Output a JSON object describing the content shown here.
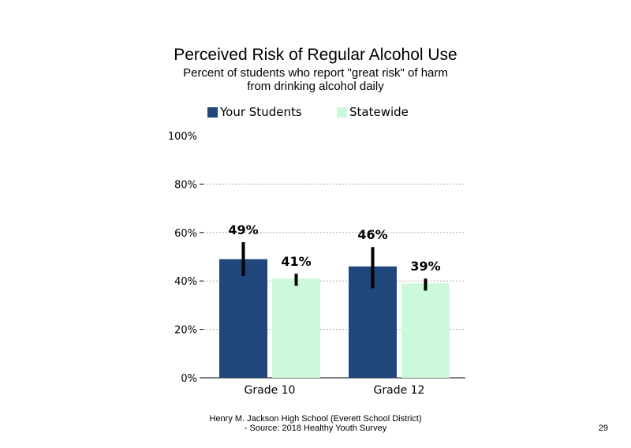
{
  "title": "Perceived Risk of Regular Alcohol Use",
  "subtitle_line1": "Percent of students who report \"great risk\" of harm",
  "subtitle_line2": "from drinking alcohol daily",
  "footer_line1": "Henry M. Jackson High School (Everett School District)",
  "footer_line2": "- Source: 2018 Healthy Youth Survey",
  "page_number": "29",
  "colors": {
    "your_students": "#1f477c",
    "statewide": "#ccf9da",
    "error_bar": "#000000",
    "grid": "#b0b0b0"
  },
  "chart_data": {
    "type": "bar",
    "title": "Perceived Risk of Regular Alcohol Use",
    "categories": [
      "Grade 10",
      "Grade 12"
    ],
    "series": [
      {
        "name": "Your Students",
        "values": [
          49,
          46
        ],
        "labels": [
          "49%",
          "46%"
        ],
        "error_low": [
          42,
          37
        ],
        "error_high": [
          56,
          54
        ]
      },
      {
        "name": "Statewide",
        "values": [
          41,
          39
        ],
        "labels": [
          "41%",
          "39%"
        ],
        "error_low": [
          38,
          36
        ],
        "error_high": [
          43,
          41
        ]
      }
    ],
    "ylim": [
      0,
      100
    ],
    "yticks": [
      0,
      20,
      40,
      60,
      80,
      100
    ],
    "ytick_labels": [
      "0%",
      "20%",
      "40%",
      "60%",
      "80%",
      "100%"
    ],
    "grid": true,
    "legend": "top"
  }
}
